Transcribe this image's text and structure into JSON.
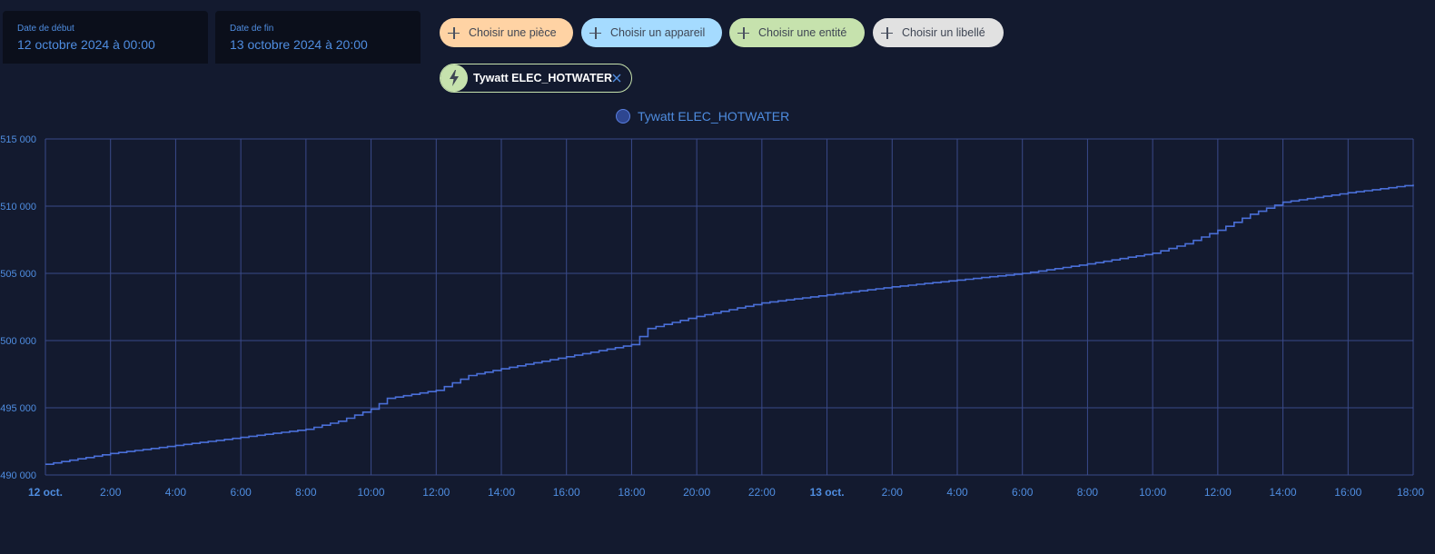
{
  "date_range": {
    "start": {
      "label": "Date de début",
      "value": "12 octobre 2024 à 00:00"
    },
    "end": {
      "label": "Date de fin",
      "value": "13 octobre 2024 à 20:00"
    }
  },
  "target_picker": {
    "chips": [
      {
        "label": "Choisir une pièce",
        "color": "#ffd3a4"
      },
      {
        "label": "Choisir un appareil",
        "color": "#a5dbff"
      },
      {
        "label": "Choisir une entité",
        "color": "#c6e2ad"
      },
      {
        "label": "Choisir un libellé",
        "color": "#e1e1e1"
      }
    ],
    "selected": {
      "label": "Tywatt ELEC_HOTWATER",
      "icon": "lightning-bolt-icon",
      "color": "#c6e2ad"
    }
  },
  "chart_data": {
    "type": "line",
    "legend": [
      "Tywatt ELEC_HOTWATER"
    ],
    "legend_position": "top-center",
    "grid": true,
    "colors": {
      "line": "#4a6fd8",
      "grid": "#3a4a8a",
      "tick_label": "#4f8de0"
    },
    "ylim": [
      490000,
      515000
    ],
    "y_ticks": [
      "490 000",
      "495 000",
      "500 000",
      "505 000",
      "510 000",
      "515 000"
    ],
    "x_ticks": [
      "12 oct.",
      "2:00",
      "4:00",
      "6:00",
      "8:00",
      "10:00",
      "12:00",
      "14:00",
      "16:00",
      "18:00",
      "20:00",
      "22:00",
      "13 oct.",
      "2:00",
      "4:00",
      "6:00",
      "8:00",
      "10:00",
      "12:00",
      "14:00",
      "16:00",
      "18:00"
    ],
    "x_ticks_bold": [
      "12 oct.",
      "13 oct."
    ],
    "x_range_hours": [
      0,
      42
    ],
    "series": [
      {
        "name": "Tywatt ELEC_HOTWATER",
        "step": true,
        "points": [
          [
            0,
            490800
          ],
          [
            2,
            491600
          ],
          [
            4,
            492200
          ],
          [
            6,
            492800
          ],
          [
            8,
            493400
          ],
          [
            9,
            494000
          ],
          [
            10,
            494900
          ],
          [
            10.5,
            495700
          ],
          [
            12,
            496300
          ],
          [
            13,
            497400
          ],
          [
            14,
            497900
          ],
          [
            16,
            498800
          ],
          [
            18,
            499700
          ],
          [
            18.5,
            500900
          ],
          [
            20,
            501800
          ],
          [
            22,
            502800
          ],
          [
            24,
            503400
          ],
          [
            26,
            504000
          ],
          [
            28,
            504500
          ],
          [
            30,
            505000
          ],
          [
            32,
            505700
          ],
          [
            34,
            506500
          ],
          [
            35,
            507200
          ],
          [
            36,
            508200
          ],
          [
            37,
            509400
          ],
          [
            38,
            510300
          ],
          [
            40,
            511000
          ],
          [
            42,
            511600
          ]
        ]
      }
    ]
  }
}
